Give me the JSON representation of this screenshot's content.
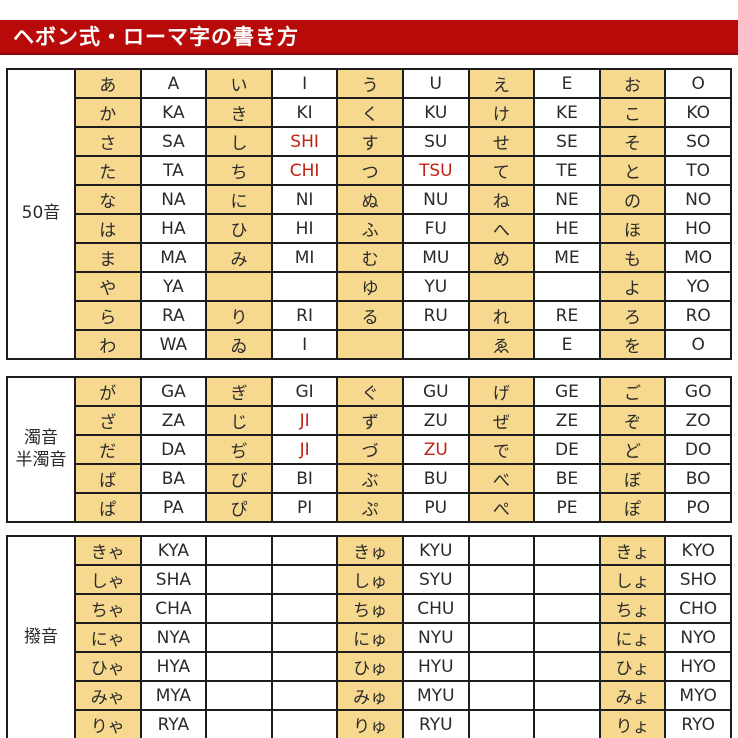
{
  "page_title": "ヘボン式・ローマ字の書き方",
  "colors": {
    "banner_red": "#b90a0a",
    "banner_border": "#8f0707",
    "kana_bg": "#f6d88e",
    "red_text": "#bf2213",
    "grid_border": "#1d1d1d"
  },
  "tables": [
    {
      "label_lines": [
        "50音"
      ],
      "label_name": "group-label-gojuon",
      "rows": [
        [
          {
            "k": "あ",
            "r": "A"
          },
          {
            "k": "い",
            "r": "I"
          },
          {
            "k": "う",
            "r": "U"
          },
          {
            "k": "え",
            "r": "E"
          },
          {
            "k": "お",
            "r": "O"
          }
        ],
        [
          {
            "k": "か",
            "r": "KA"
          },
          {
            "k": "き",
            "r": "KI"
          },
          {
            "k": "く",
            "r": "KU"
          },
          {
            "k": "け",
            "r": "KE"
          },
          {
            "k": "こ",
            "r": "KO"
          }
        ],
        [
          {
            "k": "さ",
            "r": "SA"
          },
          {
            "k": "し",
            "r": "SHI",
            "red": true
          },
          {
            "k": "す",
            "r": "SU"
          },
          {
            "k": "せ",
            "r": "SE"
          },
          {
            "k": "そ",
            "r": "SO"
          }
        ],
        [
          {
            "k": "た",
            "r": "TA"
          },
          {
            "k": "ち",
            "r": "CHI",
            "red": true
          },
          {
            "k": "つ",
            "r": "TSU",
            "red": true
          },
          {
            "k": "て",
            "r": "TE"
          },
          {
            "k": "と",
            "r": "TO"
          }
        ],
        [
          {
            "k": "な",
            "r": "NA"
          },
          {
            "k": "に",
            "r": "NI"
          },
          {
            "k": "ぬ",
            "r": "NU"
          },
          {
            "k": "ね",
            "r": "NE"
          },
          {
            "k": "の",
            "r": "NO"
          }
        ],
        [
          {
            "k": "は",
            "r": "HA"
          },
          {
            "k": "ひ",
            "r": "HI"
          },
          {
            "k": "ふ",
            "r": "FU"
          },
          {
            "k": "へ",
            "r": "HE"
          },
          {
            "k": "ほ",
            "r": "HO"
          }
        ],
        [
          {
            "k": "ま",
            "r": "MA"
          },
          {
            "k": "み",
            "r": "MI"
          },
          {
            "k": "む",
            "r": "MU"
          },
          {
            "k": "め",
            "r": "ME"
          },
          {
            "k": "も",
            "r": "MO"
          }
        ],
        [
          {
            "k": "や",
            "r": "YA"
          },
          {
            "k": "",
            "r": ""
          },
          {
            "k": "ゆ",
            "r": "YU"
          },
          {
            "k": "",
            "r": ""
          },
          {
            "k": "よ",
            "r": "YO"
          }
        ],
        [
          {
            "k": "ら",
            "r": "RA"
          },
          {
            "k": "り",
            "r": "RI"
          },
          {
            "k": "る",
            "r": "RU"
          },
          {
            "k": "れ",
            "r": "RE"
          },
          {
            "k": "ろ",
            "r": "RO"
          }
        ],
        [
          {
            "k": "わ",
            "r": "WA"
          },
          {
            "k": "ゐ",
            "r": "I"
          },
          {
            "k": "",
            "r": ""
          },
          {
            "k": "ゑ",
            "r": "E"
          },
          {
            "k": "を",
            "r": "O"
          }
        ]
      ]
    },
    {
      "label_lines": [
        "濁音",
        "半濁音"
      ],
      "label_name": "group-label-dakuon-handakuon",
      "rows": [
        [
          {
            "k": "が",
            "r": "GA"
          },
          {
            "k": "ぎ",
            "r": "GI"
          },
          {
            "k": "ぐ",
            "r": "GU"
          },
          {
            "k": "げ",
            "r": "GE"
          },
          {
            "k": "ご",
            "r": "GO"
          }
        ],
        [
          {
            "k": "ざ",
            "r": "ZA"
          },
          {
            "k": "じ",
            "r": "JI",
            "red": true
          },
          {
            "k": "ず",
            "r": "ZU"
          },
          {
            "k": "ぜ",
            "r": "ZE"
          },
          {
            "k": "ぞ",
            "r": "ZO"
          }
        ],
        [
          {
            "k": "だ",
            "r": "DA"
          },
          {
            "k": "ぢ",
            "r": "JI",
            "red": true
          },
          {
            "k": "づ",
            "r": "ZU",
            "red": true
          },
          {
            "k": "で",
            "r": "DE"
          },
          {
            "k": "ど",
            "r": "DO"
          }
        ],
        [
          {
            "k": "ば",
            "r": "BA"
          },
          {
            "k": "び",
            "r": "BI"
          },
          {
            "k": "ぶ",
            "r": "BU"
          },
          {
            "k": "べ",
            "r": "BE"
          },
          {
            "k": "ぼ",
            "r": "BO"
          }
        ],
        [
          {
            "k": "ぱ",
            "r": "PA"
          },
          {
            "k": "ぴ",
            "r": "PI"
          },
          {
            "k": "ぷ",
            "r": "PU"
          },
          {
            "k": "ぺ",
            "r": "PE"
          },
          {
            "k": "ぽ",
            "r": "PO"
          }
        ]
      ]
    },
    {
      "label_lines": [
        "撥音"
      ],
      "label_name": "group-label-hatsuon",
      "rows": [
        [
          {
            "k": "きゃ",
            "r": "KYA"
          },
          {
            "k": "",
            "r": "",
            "kw": true
          },
          {
            "k": "きゅ",
            "r": "KYU"
          },
          {
            "k": "",
            "r": "",
            "kw": true
          },
          {
            "k": "きょ",
            "r": "KYO"
          }
        ],
        [
          {
            "k": "しゃ",
            "r": "SHA"
          },
          {
            "k": "",
            "r": "",
            "kw": true
          },
          {
            "k": "しゅ",
            "r": "SYU"
          },
          {
            "k": "",
            "r": "",
            "kw": true
          },
          {
            "k": "しょ",
            "r": "SHO"
          }
        ],
        [
          {
            "k": "ちゃ",
            "r": "CHA"
          },
          {
            "k": "",
            "r": "",
            "kw": true
          },
          {
            "k": "ちゅ",
            "r": "CHU"
          },
          {
            "k": "",
            "r": "",
            "kw": true
          },
          {
            "k": "ちょ",
            "r": "CHO"
          }
        ],
        [
          {
            "k": "にゃ",
            "r": "NYA"
          },
          {
            "k": "",
            "r": "",
            "kw": true
          },
          {
            "k": "にゅ",
            "r": "NYU"
          },
          {
            "k": "",
            "r": "",
            "kw": true
          },
          {
            "k": "にょ",
            "r": "NYO"
          }
        ],
        [
          {
            "k": "ひゃ",
            "r": "HYA"
          },
          {
            "k": "",
            "r": "",
            "kw": true
          },
          {
            "k": "ひゅ",
            "r": "HYU"
          },
          {
            "k": "",
            "r": "",
            "kw": true
          },
          {
            "k": "ひょ",
            "r": "HYO"
          }
        ],
        [
          {
            "k": "みゃ",
            "r": "MYA"
          },
          {
            "k": "",
            "r": "",
            "kw": true
          },
          {
            "k": "みゅ",
            "r": "MYU"
          },
          {
            "k": "",
            "r": "",
            "kw": true
          },
          {
            "k": "みょ",
            "r": "MYO"
          }
        ],
        [
          {
            "k": "りゃ",
            "r": "RYA"
          },
          {
            "k": "",
            "r": "",
            "kw": true
          },
          {
            "k": "りゅ",
            "r": "RYU"
          },
          {
            "k": "",
            "r": "",
            "kw": true
          },
          {
            "k": "りょ",
            "r": "RYO"
          }
        ]
      ]
    }
  ]
}
